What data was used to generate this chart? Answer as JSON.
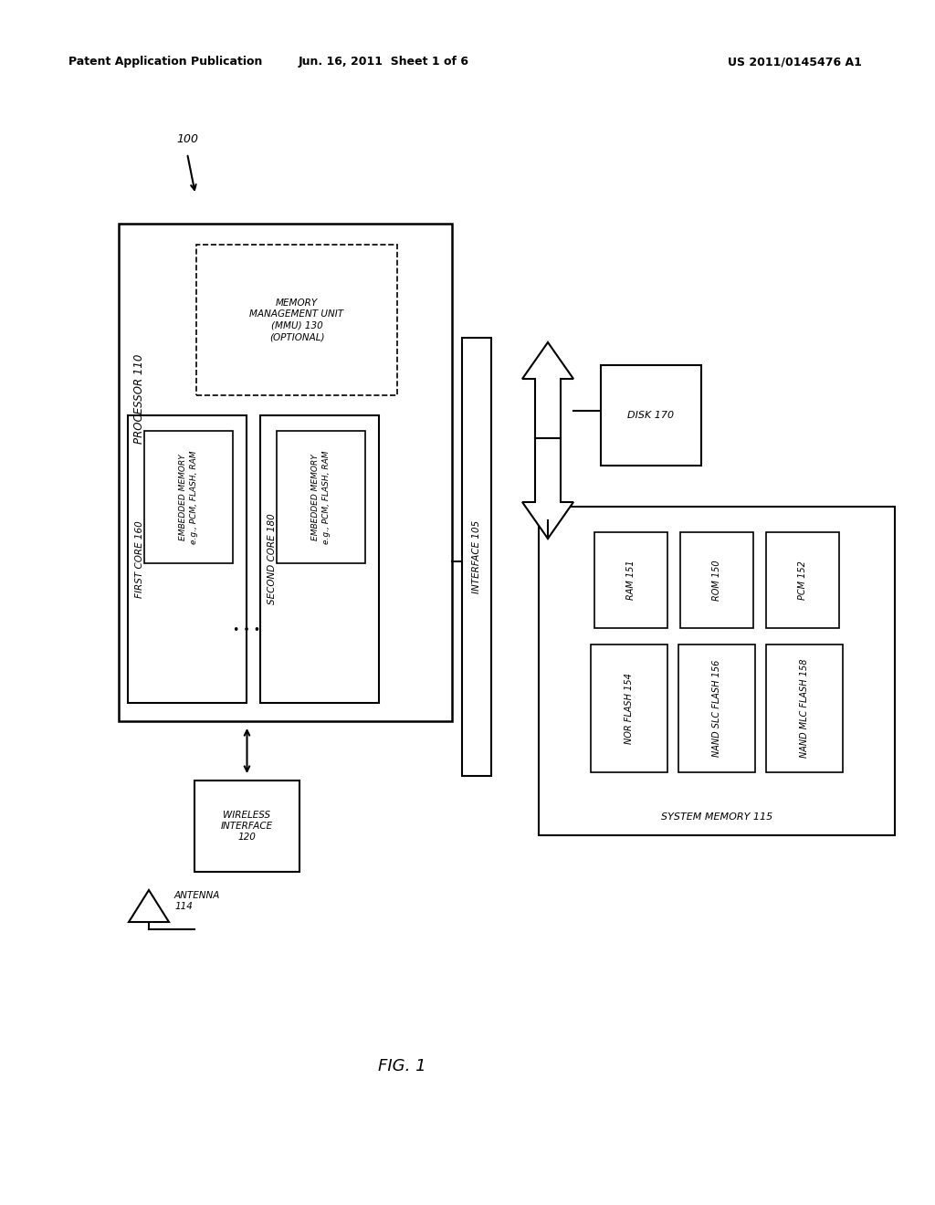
{
  "bg_color": "#ffffff",
  "header_left": "Patent Application Publication",
  "header_center": "Jun. 16, 2011  Sheet 1 of 6",
  "header_right": "US 2011/0145476 A1",
  "fig_label": "FIG. 1",
  "ref_100": "100",
  "processor_label": "PROCESSOR 110",
  "mmu_label": "MEMORY\nMANAGEMENT UNIT\n(MMU) 130\n(OPTIONAL)",
  "first_core_label": "FIRST CORE 160",
  "embedded_mem1_label": "EMBEDDED MEMORY\ne.g., PCM, FLASH, RAM",
  "second_core_label": "SECOND CORE 180",
  "embedded_mem2_label": "EMBEDDED MEMORY\ne.g., PCM, FLASH, RAM",
  "interface_label": "INTERFACE 105",
  "disk_label": "DISK 170",
  "system_mem_label": "SYSTEM MEMORY 115",
  "ram_label": "RAM 151",
  "rom_label": "ROM 150",
  "pcm_label": "PCM 152",
  "nor_label": "NOR FLASH 154",
  "nand_slc_label": "NAND SLC FLASH 156",
  "nand_mlc_label": "NAND MLC FLASH 158",
  "wireless_label": "WIRELESS\nINTERFACE\n120",
  "antenna_label": "ANTENNA\n114"
}
